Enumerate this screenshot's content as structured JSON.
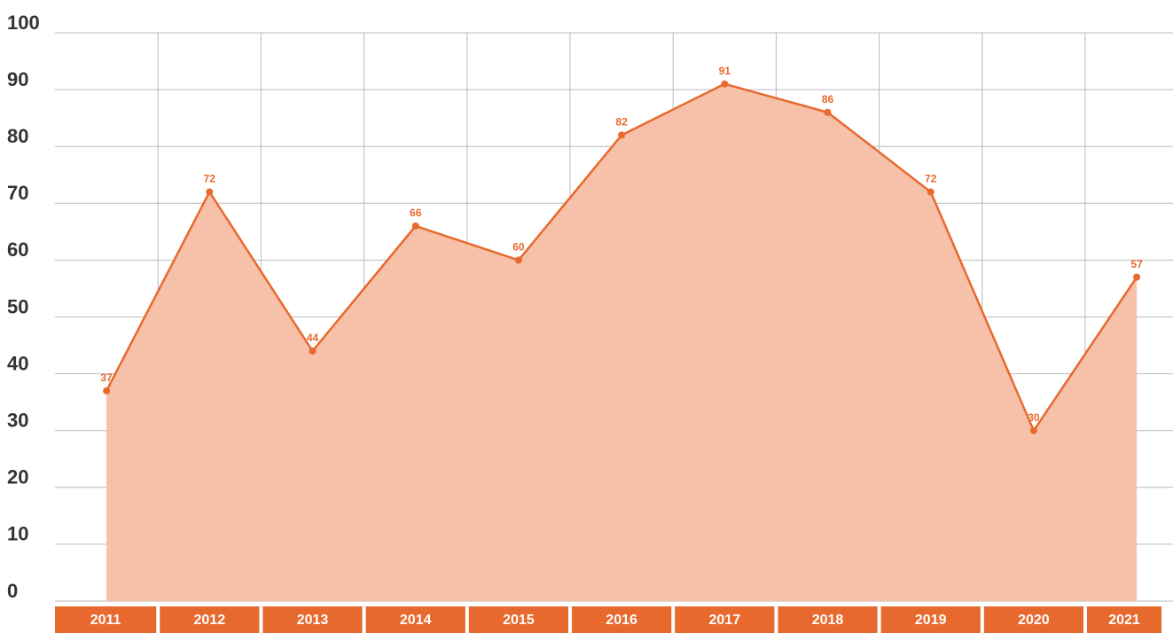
{
  "chart_data": {
    "type": "area",
    "categories": [
      "2011",
      "2012",
      "2013",
      "2014",
      "2015",
      "2016",
      "2017",
      "2018",
      "2019",
      "2020",
      "2021"
    ],
    "values": [
      37,
      72,
      44,
      66,
      60,
      82,
      91,
      86,
      72,
      30,
      57
    ],
    "color": "#e8692e",
    "fill_color": "#f6c1a8",
    "ylim": [
      0,
      100
    ],
    "yticks": [
      0,
      10,
      20,
      30,
      40,
      50,
      60,
      70,
      80,
      90,
      100
    ],
    "grid": true
  }
}
